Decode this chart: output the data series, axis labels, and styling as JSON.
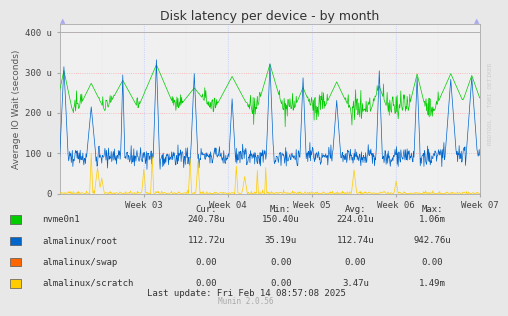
{
  "title": "Disk latency per device - by month",
  "ylabel": "Average IO Wait (seconds)",
  "background_color": "#e8e8e8",
  "plot_bg_color": "#f0f0f0",
  "grid_color_h": "#ff9999",
  "grid_color_v": "#bbddff",
  "ylim": [
    0,
    400
  ],
  "ytick_labels": [
    "0",
    "100 u",
    "200 u",
    "300 u",
    "400 u"
  ],
  "xtick_labels": [
    "Week 03",
    "Week 04",
    "Week 05",
    "Week 06",
    "Week 07"
  ],
  "colors": {
    "green": "#00cc00",
    "blue": "#0066cc",
    "orange": "#ff6600",
    "yellow": "#ffcc00"
  },
  "legend_entries": [
    {
      "label": "nvme0n1",
      "color": "#00cc00"
    },
    {
      "label": "almalinux/root",
      "color": "#0066cc"
    },
    {
      "label": "almalinux/swap",
      "color": "#ff6600"
    },
    {
      "label": "almalinux/scratch",
      "color": "#ffcc00"
    }
  ],
  "legend_stats": {
    "headers": [
      "Cur:",
      "Min:",
      "Avg:",
      "Max:"
    ],
    "rows": [
      [
        "240.78u",
        "150.40u",
        "224.01u",
        "1.06m"
      ],
      [
        "112.72u",
        "35.19u",
        "112.74u",
        "942.76u"
      ],
      [
        "0.00",
        "0.00",
        "0.00",
        "0.00"
      ],
      [
        "0.00",
        "0.00",
        "3.47u",
        "1.49m"
      ]
    ]
  },
  "footer": "Last update: Fri Feb 14 08:57:08 2025",
  "munin_version": "Munin 2.0.56",
  "watermark": "RRDTOOL / TOBI OETIKER"
}
